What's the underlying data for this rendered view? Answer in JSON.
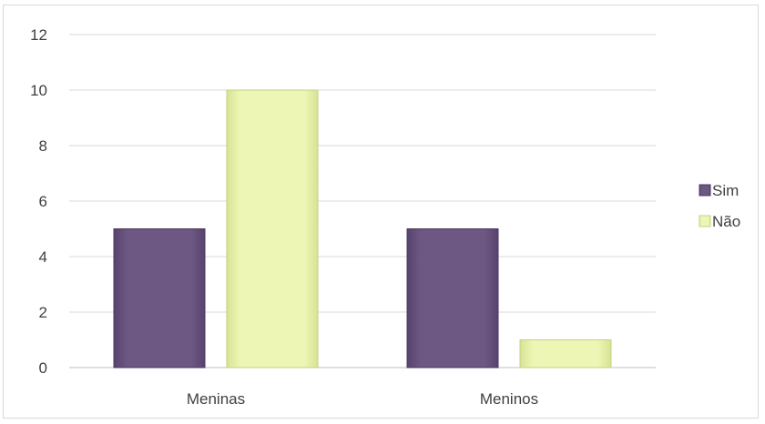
{
  "chart_data": {
    "type": "bar",
    "title": "",
    "xlabel": "",
    "ylabel": "",
    "categories": [
      "Meninas",
      "Meninos"
    ],
    "series": [
      {
        "name": "Sim",
        "values": [
          5,
          5
        ],
        "color": "#66507c"
      },
      {
        "name": "Não",
        "values": [
          10,
          1
        ],
        "color": "#e9f2a8"
      }
    ],
    "ylim": [
      0,
      12
    ],
    "yticks": [
      "0",
      "2",
      "4",
      "6",
      "8",
      "10",
      "12"
    ],
    "grid": true,
    "legend_position": "right"
  }
}
